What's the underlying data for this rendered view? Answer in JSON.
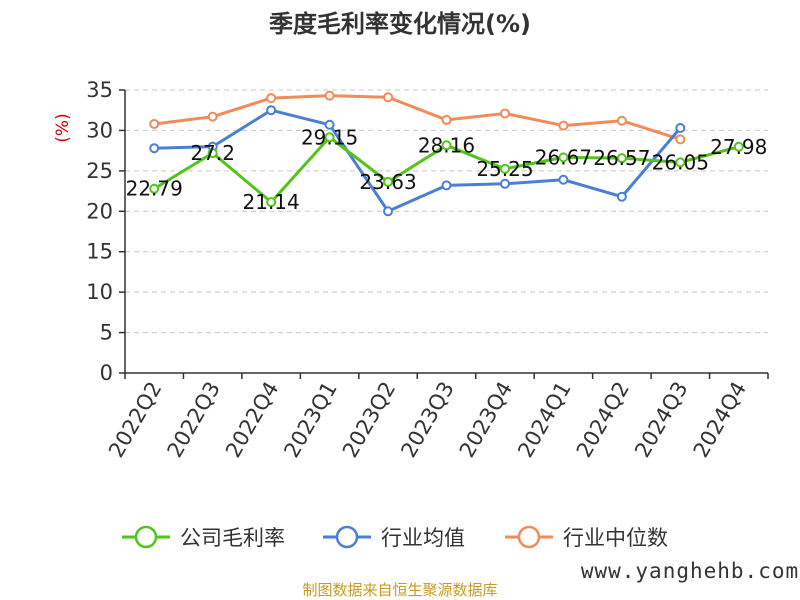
{
  "chart_data": {
    "type": "line",
    "title": "季度毛利率变化情况(%)",
    "ylabel": "(%)",
    "xlabel": "",
    "categories": [
      "2022Q2",
      "2022Q3",
      "2022Q4",
      "2023Q1",
      "2023Q2",
      "2023Q3",
      "2023Q4",
      "2024Q1",
      "2024Q2",
      "2024Q3",
      "2024Q4"
    ],
    "ylim": [
      0,
      35
    ],
    "yticks": [
      0,
      5,
      10,
      15,
      20,
      25,
      30,
      35
    ],
    "yticks_labels": [
      "0",
      "5",
      "10",
      "15",
      "20",
      "25",
      "30",
      "35"
    ],
    "grid": true,
    "legend_position": "bottom",
    "series": [
      {
        "name": "公司毛利率",
        "color": "#52c41a",
        "values": [
          22.79,
          27.2,
          21.14,
          29.15,
          23.63,
          28.16,
          25.25,
          26.67,
          26.57,
          26.05,
          27.98
        ],
        "labels": [
          "22.79",
          "27.2",
          "21.14",
          "29.15",
          "23.63",
          "28.16",
          "25.25",
          "26.67",
          "26.57",
          "26.05",
          "27.98"
        ]
      },
      {
        "name": "行业均值",
        "color": "#4a7fd8",
        "values": [
          27.8,
          28.0,
          32.5,
          30.7,
          20.0,
          23.2,
          23.4,
          23.9,
          21.8,
          30.3,
          null
        ]
      },
      {
        "name": "行业中位数",
        "color": "#f28b5a",
        "values": [
          30.8,
          31.7,
          34.0,
          34.3,
          34.1,
          31.3,
          32.1,
          30.6,
          31.2,
          28.9,
          null
        ]
      }
    ]
  },
  "source": {
    "text": "制图数据来自恒生聚源数据库",
    "color": "#c89b20"
  },
  "watermark": "www.yanghehb.com"
}
